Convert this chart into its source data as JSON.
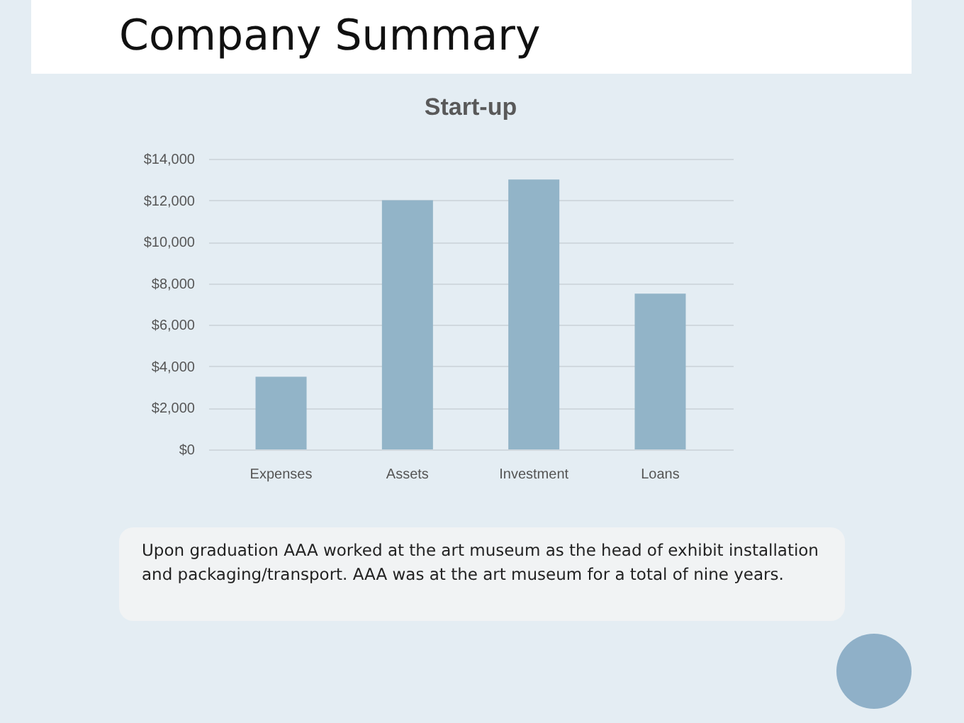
{
  "chart_data": {
    "type": "bar",
    "title": "Company Summary",
    "subtitle": "Start-up",
    "categories": [
      "Expenses",
      "Assets",
      "Investment",
      "Loans"
    ],
    "values": [
      3500,
      12000,
      13000,
      7500
    ],
    "color": "#92b4c8",
    "ylim": [
      0,
      14000
    ],
    "yticks": [
      {
        "value": 0,
        "label": "$0"
      },
      {
        "value": 2000,
        "label": "$2,000"
      },
      {
        "value": 4000,
        "label": "$4,000"
      },
      {
        "value": 6000,
        "label": "$6,000"
      },
      {
        "value": 8000,
        "label": "$8,000"
      },
      {
        "value": 10000,
        "label": "$10,000"
      },
      {
        "value": 12000,
        "label": "$12,000"
      },
      {
        "value": 14000,
        "label": "$14,000"
      }
    ],
    "grid": true,
    "annotations": [
      "Upon graduation AAA worked at the art museum as the head of exhibit installation and packaging/transport. AAA was at the art museum for a total of nine years."
    ]
  }
}
